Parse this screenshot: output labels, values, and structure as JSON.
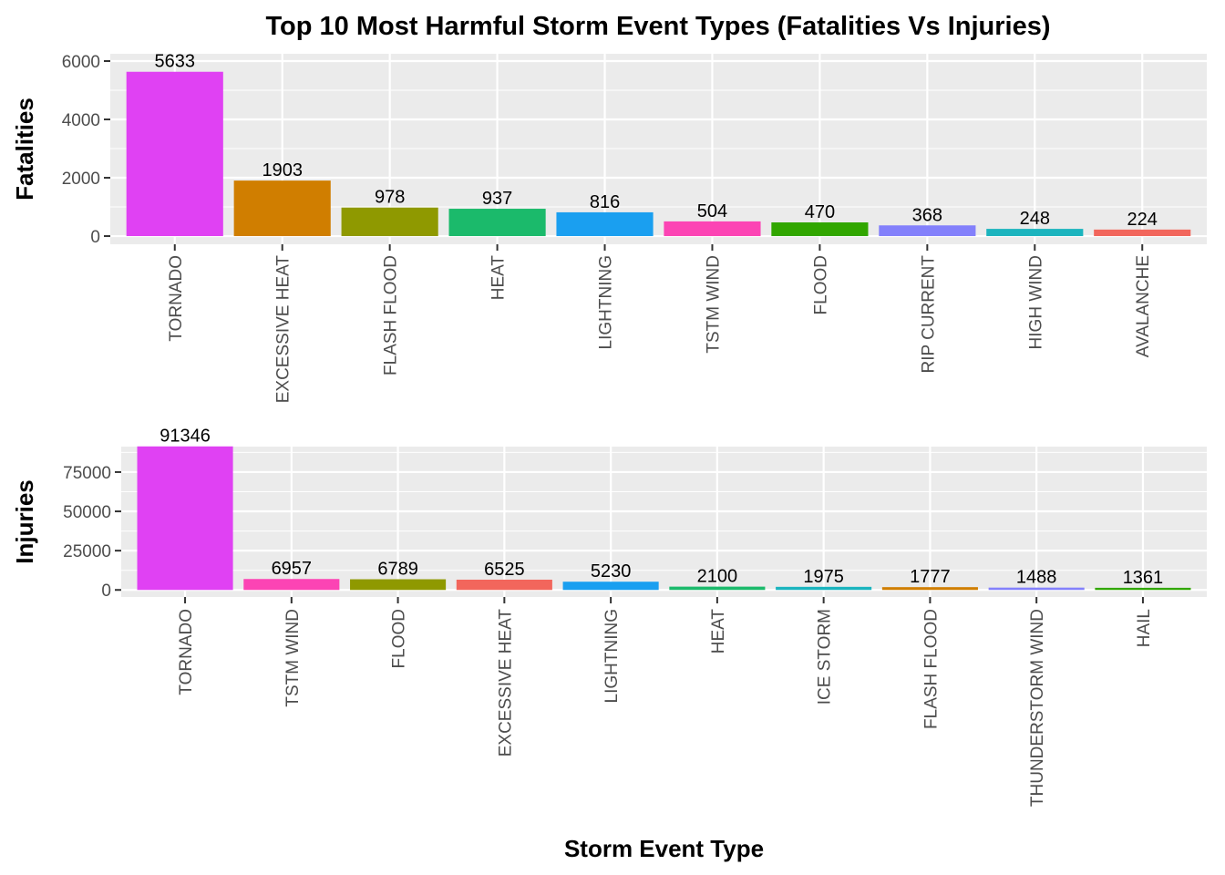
{
  "title": "Top 10 Most Harmful Storm Event Types (Fatalities Vs Injuries)",
  "chart_data": [
    {
      "type": "bar",
      "ylabel": "Fatalities",
      "xlabel": "",
      "categories": [
        "TORNADO",
        "EXCESSIVE HEAT",
        "FLASH FLOOD",
        "HEAT",
        "LIGHTNING",
        "TSTM WIND",
        "FLOOD",
        "RIP CURRENT",
        "HIGH WIND",
        "AVALANCHE"
      ],
      "values": [
        5633,
        1903,
        978,
        937,
        816,
        504,
        470,
        368,
        248,
        224
      ],
      "colors": [
        "#E041F3",
        "#D07E00",
        "#8F9900",
        "#1BBA6B",
        "#1A9FF0",
        "#FC44B4",
        "#31A600",
        "#8380FB",
        "#1BB4BE",
        "#F2665C"
      ],
      "ylim": [
        -280,
        6250
      ],
      "yticks": [
        0,
        2000,
        4000,
        6000
      ],
      "grid": true,
      "legend": "none"
    },
    {
      "type": "bar",
      "ylabel": "Injuries",
      "xlabel": "Storm Event Type",
      "categories": [
        "TORNADO",
        "TSTM WIND",
        "FLOOD",
        "EXCESSIVE HEAT",
        "LIGHTNING",
        "HEAT",
        "ICE STORM",
        "FLASH FLOOD",
        "THUNDERSTORM WIND",
        "HAIL"
      ],
      "values": [
        91346,
        6957,
        6789,
        6525,
        5230,
        2100,
        1975,
        1777,
        1488,
        1361
      ],
      "colors": [
        "#E041F3",
        "#FC44B4",
        "#8F9900",
        "#F2665C",
        "#1A9FF0",
        "#1BBA6B",
        "#1BB4BE",
        "#D07E00",
        "#8380FB",
        "#31A600"
      ],
      "ylim": [
        -4500,
        91200
      ],
      "yticks": [
        0,
        25000,
        50000,
        75000
      ],
      "grid": true,
      "legend": "none"
    }
  ]
}
